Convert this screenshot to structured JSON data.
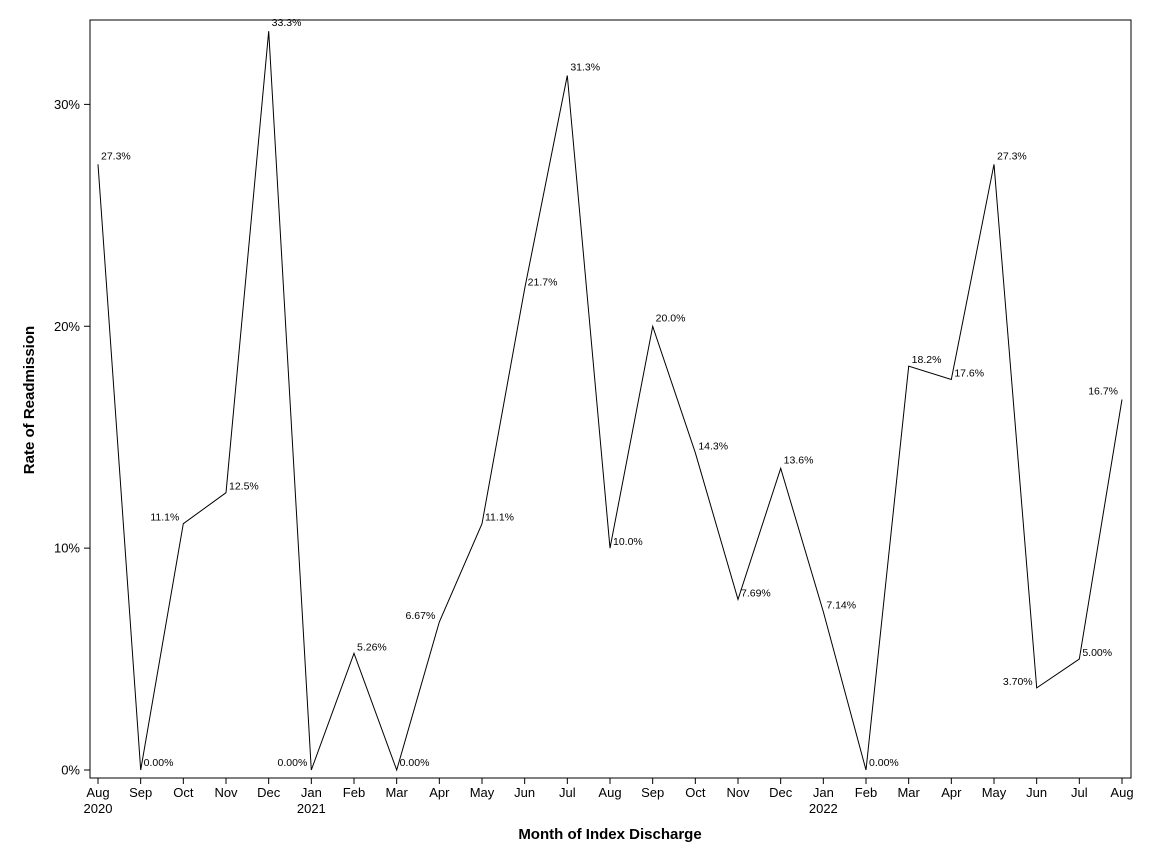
{
  "chart_data": {
    "type": "line",
    "title": "",
    "xlabel": "Month of Index Discharge",
    "ylabel": "Rate of Readmission",
    "ylim": [
      0,
      0.3333
    ],
    "yticks": [
      "0%",
      "10%",
      "20%",
      "30%"
    ],
    "grid": false,
    "x_ticks": [
      {
        "month": "Aug",
        "year": "2020"
      },
      {
        "month": "Sep",
        "year": ""
      },
      {
        "month": "Oct",
        "year": ""
      },
      {
        "month": "Nov",
        "year": ""
      },
      {
        "month": "Dec",
        "year": ""
      },
      {
        "month": "Jan",
        "year": "2021"
      },
      {
        "month": "Feb",
        "year": ""
      },
      {
        "month": "Mar",
        "year": ""
      },
      {
        "month": "Apr",
        "year": ""
      },
      {
        "month": "May",
        "year": ""
      },
      {
        "month": "Jun",
        "year": ""
      },
      {
        "month": "Jul",
        "year": ""
      },
      {
        "month": "Aug",
        "year": ""
      },
      {
        "month": "Sep",
        "year": ""
      },
      {
        "month": "Oct",
        "year": ""
      },
      {
        "month": "Nov",
        "year": ""
      },
      {
        "month": "Dec",
        "year": ""
      },
      {
        "month": "Jan",
        "year": "2022"
      },
      {
        "month": "Feb",
        "year": ""
      },
      {
        "month": "Mar",
        "year": ""
      },
      {
        "month": "Apr",
        "year": ""
      },
      {
        "month": "May",
        "year": ""
      },
      {
        "month": "Jun",
        "year": ""
      },
      {
        "month": "Jul",
        "year": ""
      },
      {
        "month": "Aug",
        "year": ""
      }
    ],
    "x": [
      "2020-08-01",
      "2020-09-01",
      "2020-10-01",
      "2020-11-01",
      "2020-12-01",
      "2021-01-01",
      "2021-02-01",
      "2021-03-01",
      "2021-04-01",
      "2021-05-01",
      "2021-06-01",
      "2021-07-01",
      "2021-08-01",
      "2021-09-01",
      "2021-10-01",
      "2021-11-01",
      "2021-12-01",
      "2022-01-01",
      "2022-02-01",
      "2022-03-01",
      "2022-04-01",
      "2022-05-01",
      "2022-06-01",
      "2022-07-01",
      "2022-08-01"
    ],
    "values": [
      0.273,
      0.0,
      0.111,
      0.125,
      0.333,
      0.0,
      0.0526,
      0.0,
      0.0667,
      0.111,
      0.217,
      0.313,
      0.1,
      0.2,
      0.143,
      0.0769,
      0.136,
      0.0714,
      0.0,
      0.182,
      0.176,
      0.273,
      0.037,
      0.05,
      0.167
    ],
    "labels": [
      "27.3%",
      "0.00%",
      "11.1%",
      "12.5%",
      "33.3%",
      "0.00%",
      "5.26%",
      "0.00%",
      "6.67%",
      "11.1%",
      "21.7%",
      "31.3%",
      "10.0%",
      "20.0%",
      "14.3%",
      "7.69%",
      "13.6%",
      "7.14%",
      "0.00%",
      "18.2%",
      "17.6%",
      "27.3%",
      "3.70%",
      "5.00%",
      "16.7%"
    ]
  }
}
